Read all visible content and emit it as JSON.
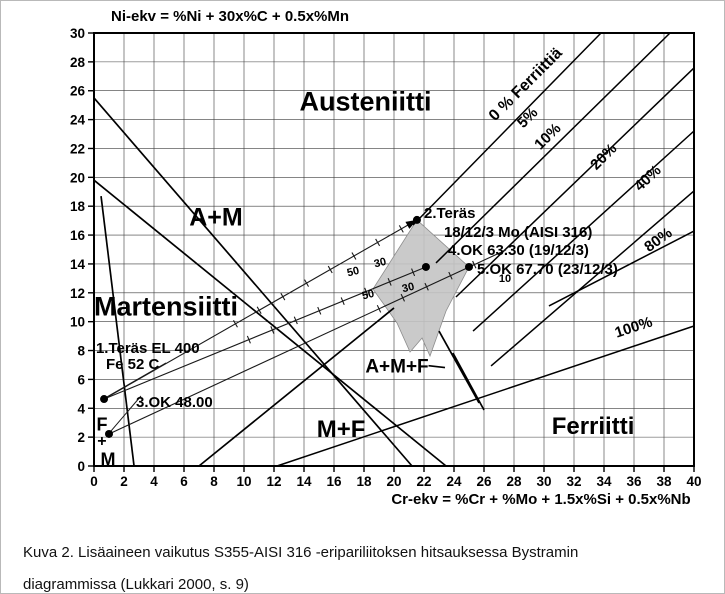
{
  "caption": {
    "line1": "Kuva 2. Lisäaineen vaikutus S355-AISI 316 -eripariliitoksen hitsauksessa Bystramin",
    "line2": "diagrammissa (Lukkari 2000, s. 9)"
  },
  "chart_data": {
    "type": "scatter",
    "xlabel": "Cr-ekv = %Cr + %Mo + 1.5x%Si + 0.5x%Nb",
    "ylabel": "Ni-ekv = %Ni + 30x%C + 0.5x%Mn",
    "xlim": [
      0,
      40
    ],
    "ylim": [
      0,
      30
    ],
    "xticks": [
      0,
      2,
      4,
      6,
      8,
      10,
      12,
      14,
      16,
      18,
      20,
      22,
      24,
      26,
      28,
      30,
      32,
      34,
      36,
      38,
      40
    ],
    "yticks": [
      0,
      2,
      4,
      6,
      8,
      10,
      12,
      14,
      16,
      18,
      20,
      22,
      24,
      26,
      28,
      30
    ],
    "grid": true,
    "legend_position": "none",
    "region_labels": [
      {
        "text": "Austeniitti",
        "cr": 18.1,
        "ni": 25.3,
        "size": 27
      },
      {
        "text": "A+M",
        "cr": 8.13,
        "ni": 17.3,
        "size": 25
      },
      {
        "text": "Martensiitti",
        "cr": 4.8,
        "ni": 11.1,
        "size": 27
      },
      {
        "text": "M+F",
        "cr": 16.47,
        "ni": 2.6,
        "size": 24
      },
      {
        "text": "A+M+F",
        "cr": 20.2,
        "ni": 6.95,
        "size": 19
      },
      {
        "text": "Ferriitti",
        "cr": 33.27,
        "ni": 2.8,
        "size": 24
      },
      {
        "text": "F",
        "cr": 0.53,
        "ni": 2.91,
        "size": 18
      },
      {
        "text": "+",
        "cr": 0.53,
        "ni": 1.8,
        "size": 16
      },
      {
        "text": "M",
        "cr": 0.93,
        "ni": 0.49,
        "size": 18
      }
    ],
    "boundary_lines": [
      {
        "name": "austenite-am-boundary",
        "x1": 0,
        "y1": 25.5,
        "x2": 21.2,
        "y2": 0
      },
      {
        "name": "am-martensite-boundary",
        "x1": 0,
        "y1": 19.8,
        "x2": 23.47,
        "y2": 0
      },
      {
        "name": "fm-martensite-boundary",
        "x1": 0.47,
        "y1": 18.7,
        "x2": 2.67,
        "y2": 0
      },
      {
        "name": "m-mf-boundary",
        "x1": 7.0,
        "y1": 0,
        "x2": 20.0,
        "y2": 10.95
      },
      {
        "name": "amf-right-boundary",
        "x1": 23.0,
        "y1": 9.35,
        "x2": 25.67,
        "y2": 4.37
      },
      {
        "name": "amf-right-boundary-2",
        "x1": 23.93,
        "y1": 7.83,
        "x2": 26.0,
        "y2": 3.88
      },
      {
        "name": "amf-label-dash",
        "x1": 22.3,
        "y1": 6.95,
        "x2": 23.4,
        "y2": 6.82
      }
    ],
    "ferrite_lines": [
      {
        "label": "0 % Ferriittiä",
        "x1": 21.27,
        "y1": 16.7,
        "x2": 33.8,
        "y2": 30,
        "lx": 29.0,
        "ly": 26.2,
        "rot": -45,
        "size": 16
      },
      {
        "label": "5%",
        "x1": 22.8,
        "y1": 14.07,
        "x2": 38.4,
        "y2": 30,
        "lx": 29.13,
        "ly": 23.9,
        "rot": -45,
        "size": 15
      },
      {
        "label": "10%",
        "x1": 24.13,
        "y1": 11.71,
        "x2": 40,
        "y2": 27.58,
        "lx": 30.47,
        "ly": 22.6,
        "rot": -45,
        "size": 15
      },
      {
        "label": "20%",
        "x1": 25.27,
        "y1": 9.35,
        "x2": 40,
        "y2": 23.21,
        "lx": 34.2,
        "ly": 21.2,
        "rot": -45,
        "size": 15
      },
      {
        "label": "40%",
        "x1": 26.47,
        "y1": 6.93,
        "x2": 40,
        "y2": 19.06,
        "lx": 37.13,
        "ly": 19.7,
        "rot": -43,
        "size": 15
      },
      {
        "label": "80%",
        "x1": 30.33,
        "y1": 11.09,
        "x2": 40,
        "y2": 16.28,
        "lx": 37.8,
        "ly": 15.4,
        "rot": -36,
        "size": 15
      },
      {
        "label": "100%",
        "x1": 12.2,
        "y1": 0,
        "x2": 40,
        "y2": 9.7,
        "lx": 36.07,
        "ly": 9.3,
        "rot": -18,
        "size": 15
      }
    ],
    "shaded_polygon": [
      [
        21.53,
        17.05
      ],
      [
        25.0,
        13.79
      ],
      [
        23.47,
        10.74
      ],
      [
        22.4,
        7.62
      ],
      [
        21.87,
        8.87
      ],
      [
        21.07,
        7.9
      ],
      [
        20.2,
        9.91
      ],
      [
        18.6,
        12.26
      ]
    ],
    "points": [
      {
        "name": "point-1-teras-el400",
        "cr": 0.67,
        "ni": 4.64
      },
      {
        "name": "point-2-teras-aisi316",
        "cr": 21.53,
        "ni": 17.05
      },
      {
        "name": "point-3-ok-4800",
        "cr": 1.0,
        "ni": 2.22
      },
      {
        "name": "point-4-ok-6330",
        "cr": 22.13,
        "ni": 13.79
      },
      {
        "name": "point-5-ok-6770",
        "cr": 25.0,
        "ni": 13.79
      }
    ],
    "point_labels": [
      {
        "text": "2.Teräs",
        "cr": 22.0,
        "ni": 17.18,
        "size": 15
      },
      {
        "text": "18/12/3 Mo (AISI 316)",
        "cr": 23.33,
        "ni": 15.87,
        "size": 15
      },
      {
        "text": "4.OK 63.30 (19/12/3)",
        "cr": 23.6,
        "ni": 14.62,
        "size": 15
      },
      {
        "text": "5.OK 67.70 (23/12/3)",
        "cr": 25.53,
        "ni": 13.3,
        "size": 15
      },
      {
        "text": "1.Teräs EL 400",
        "cr": 0.13,
        "ni": 7.83,
        "size": 15
      },
      {
        "text": "Fe 52 C",
        "cr": 0.8,
        "ni": 6.72,
        "size": 15
      },
      {
        "text": "3.OK 48.00",
        "cr": 2.8,
        "ni": 4.09,
        "size": 15
      }
    ],
    "pointer_lines": [
      {
        "x1": 4.8,
        "y1": 7.14,
        "x2": 0.73,
        "y2": 4.71
      },
      {
        "x1": 3.13,
        "y1": 4.85,
        "x2": 1.13,
        "y2": 2.42
      }
    ],
    "tie_lines": [
      {
        "x1": 0.67,
        "y1": 4.64,
        "x2": 21.53,
        "y2": 17.05,
        "ticks": {
          "n": 8,
          "t0": 0.42,
          "t1": 0.95
        },
        "arrow": true
      },
      {
        "x1": 0.67,
        "y1": 4.64,
        "x2": 22.13,
        "y2": 13.79,
        "ticks": {
          "n": 8,
          "t0": 0.45,
          "t1": 0.96
        },
        "arrow": false
      },
      {
        "x1": 1.0,
        "y1": 2.22,
        "x2": 27.47,
        "y2": 14.97,
        "ticks": {
          "n": 5,
          "t0": 0.68,
          "t1": 0.92
        },
        "arrow": false
      }
    ],
    "tie_labels": [
      {
        "text": "50",
        "cr": 17.33,
        "ni": 13.23,
        "rot": -14
      },
      {
        "text": "30",
        "cr": 19.13,
        "ni": 13.86,
        "rot": -14
      },
      {
        "text": "50",
        "cr": 18.33,
        "ni": 11.64,
        "rot": -14
      },
      {
        "text": "30",
        "cr": 21.0,
        "ni": 12.13,
        "rot": -14
      },
      {
        "text": "10",
        "cr": 27.4,
        "ni": 12.75,
        "rot": 0
      }
    ]
  }
}
